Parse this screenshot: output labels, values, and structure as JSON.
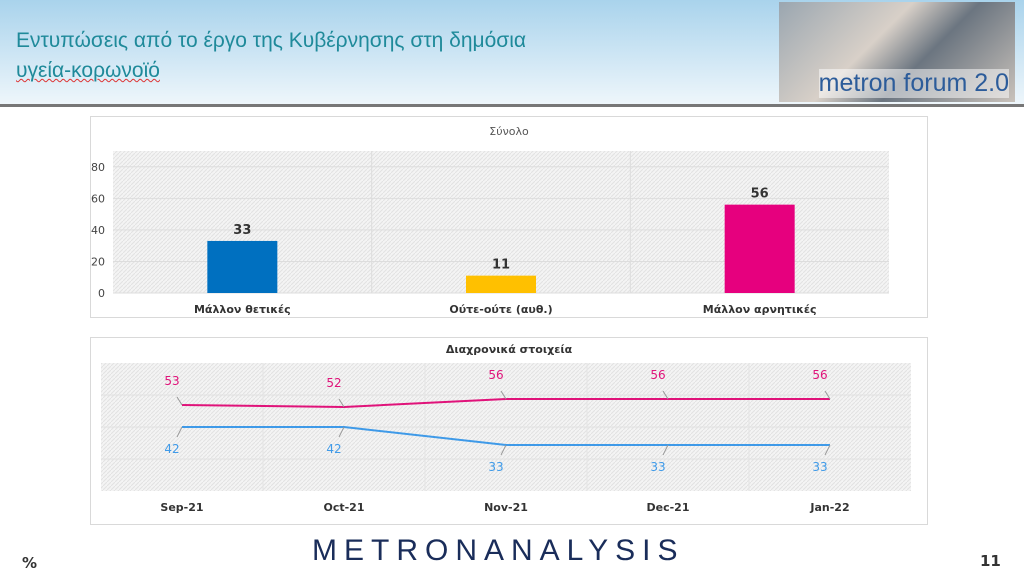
{
  "header": {
    "title_line1": "Εντυπώσεις από το έργο της Κυβέρνησης στη δημόσια",
    "title_line2": "υγεία-κορωνοϊό",
    "logo_text": "metron forum 2.0"
  },
  "footer": {
    "brand": "METRONANALYSIS",
    "unit": "%",
    "page": "11"
  },
  "chart_data": [
    {
      "type": "bar",
      "title": "Σύνολο",
      "categories": [
        "Μάλλον θετικές",
        "Ούτε-ούτε (αυθ.)",
        "Μάλλον αρνητικές"
      ],
      "values": [
        33,
        11,
        56
      ],
      "colors": [
        "#0070c0",
        "#ffc000",
        "#e6007e"
      ],
      "ylim": [
        0,
        90
      ],
      "yticks": [
        0,
        20,
        40,
        60,
        80
      ],
      "grid": true
    },
    {
      "type": "line",
      "title": "Διαχρονικά στοιχεία",
      "x": [
        "Sep-21",
        "Oct-21",
        "Nov-21",
        "Dec-21",
        "Jan-22"
      ],
      "series": [
        {
          "name": "Μάλλον αρνητικές",
          "values": [
            53,
            52,
            56,
            56,
            56
          ],
          "color": "#e0137a"
        },
        {
          "name": "Μάλλον θετικές",
          "values": [
            42,
            42,
            33,
            33,
            33
          ],
          "color": "#3f9ae8"
        }
      ],
      "ylim": [
        10,
        74
      ],
      "grid": true
    }
  ]
}
